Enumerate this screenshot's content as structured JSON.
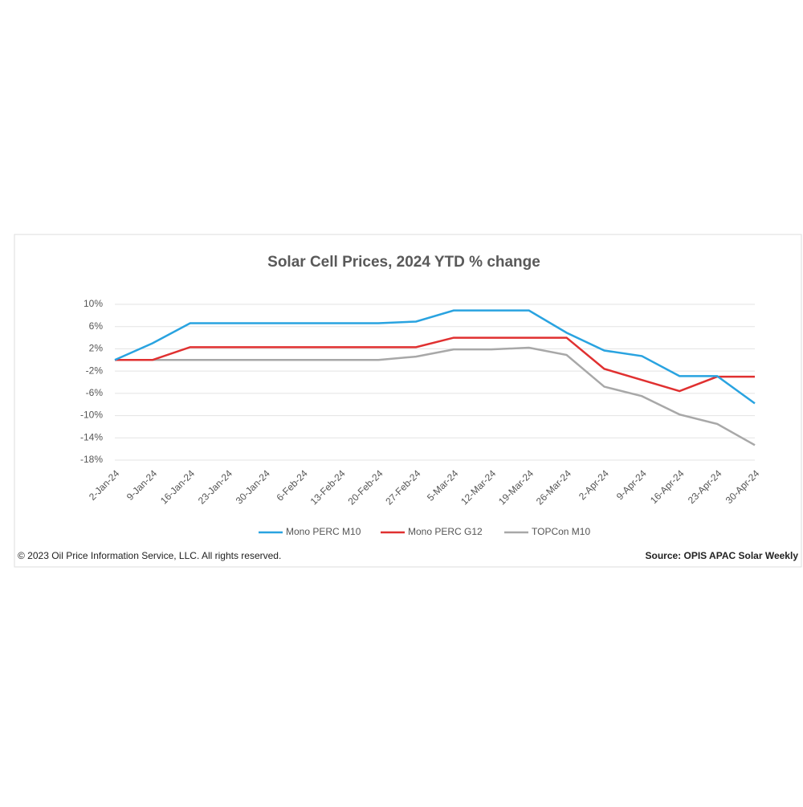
{
  "chart_data": {
    "type": "line",
    "title": "Solar Cell Prices, 2024 YTD % change",
    "categories": [
      "2-Jan-24",
      "9-Jan-24",
      "16-Jan-24",
      "23-Jan-24",
      "30-Jan-24",
      "6-Feb-24",
      "13-Feb-24",
      "20-Feb-24",
      "27-Feb-24",
      "5-Mar-24",
      "12-Mar-24",
      "19-Mar-24",
      "26-Mar-24",
      "2-Apr-24",
      "9-Apr-24",
      "16-Apr-24",
      "23-Apr-24",
      "30-Apr-24"
    ],
    "series": [
      {
        "name": "Mono PERC M10",
        "color": "#29a3e0",
        "values": [
          0,
          3.0,
          6.6,
          6.6,
          6.6,
          6.6,
          6.6,
          6.6,
          6.9,
          8.9,
          8.9,
          8.9,
          4.9,
          1.7,
          0.7,
          -2.9,
          -2.9,
          -7.8
        ]
      },
      {
        "name": "Mono PERC G12",
        "color": "#e03030",
        "values": [
          0,
          0,
          2.3,
          2.3,
          2.3,
          2.3,
          2.3,
          2.3,
          2.3,
          4.0,
          4.0,
          4.0,
          4.0,
          -1.6,
          -3.6,
          -5.6,
          -3.0,
          -3.0
        ]
      },
      {
        "name": "TOPCon M10",
        "color": "#a8a8a8",
        "values": [
          0,
          0,
          0,
          0,
          0,
          0,
          0,
          0,
          0.6,
          1.9,
          1.9,
          2.2,
          0.9,
          -4.8,
          -6.5,
          -9.8,
          -11.5,
          -15.3
        ]
      }
    ],
    "ylim": [
      -18,
      10
    ],
    "yticks": [
      {
        "value": 10,
        "label": "10%"
      },
      {
        "value": 6,
        "label": "6%"
      },
      {
        "value": 2,
        "label": "2%"
      },
      {
        "value": -2,
        "label": "-2%"
      },
      {
        "value": -6,
        "label": "-6%"
      },
      {
        "value": -10,
        "label": "-10%"
      },
      {
        "value": -14,
        "label": "-14%"
      },
      {
        "value": -18,
        "label": "-18%"
      }
    ],
    "grid": true,
    "legend": "bottom",
    "footer_left": "© 2023 Oil Price Information Service, LLC. All rights reserved.",
    "footer_right": "Source: OPIS APAC Solar Weekly"
  }
}
